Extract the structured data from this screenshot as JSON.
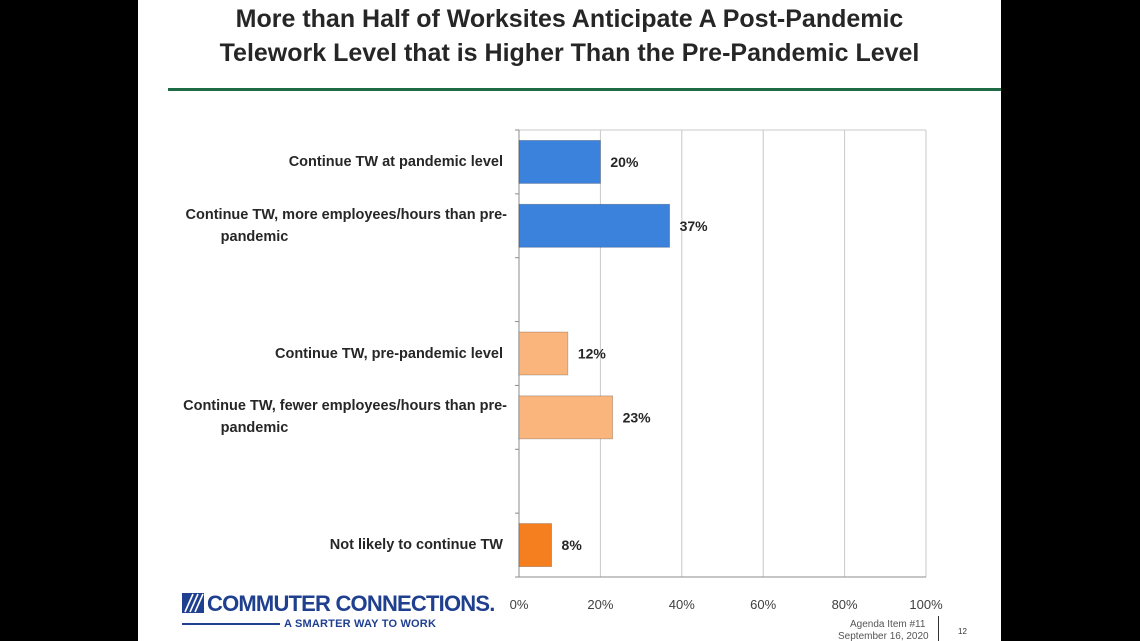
{
  "slide": {
    "title_line1": "More than Half of Worksites Anticipate A Post-Pandemic",
    "title_line2": "Telework Level that is Higher Than the Pre-Pandemic Level",
    "accent_color": "#1e6b45"
  },
  "chart_data": {
    "type": "bar",
    "orientation": "horizontal",
    "title": "",
    "xlabel": "",
    "ylabel": "",
    "xlim": [
      0,
      100
    ],
    "x_ticks": [
      "0%",
      "20%",
      "40%",
      "60%",
      "80%",
      "100%"
    ],
    "grid": true,
    "legend": "none",
    "categories": [
      {
        "label_lines": [
          "Continue TW at pandemic level"
        ],
        "value": 20,
        "value_label": "20%",
        "color": "#3b82dc",
        "group": 1
      },
      {
        "label_lines": [
          "Continue TW, more employees/hours than pre-",
          "pandemic"
        ],
        "value": 37,
        "value_label": "37%",
        "color": "#3b82dc",
        "group": 1
      },
      {
        "label_lines": [
          "Continue TW, pre-pandemic level"
        ],
        "value": 12,
        "value_label": "12%",
        "color": "#fab57c",
        "group": 2
      },
      {
        "label_lines": [
          "Continue TW, fewer employees/hours than pre-",
          "pandemic"
        ],
        "value": 23,
        "value_label": "23%",
        "color": "#fab57c",
        "group": 2
      },
      {
        "label_lines": [
          "Not likely to continue TW"
        ],
        "value": 8,
        "value_label": "8%",
        "color": "#f57f1f",
        "group": 3
      }
    ]
  },
  "logo": {
    "icon": "commuter-connections-logo-icon",
    "name": "COMMUTER CONNECTIONS.",
    "tagline": "A SMARTER WAY TO WORK"
  },
  "footer": {
    "agenda_item": "Agenda Item #11",
    "date": "September 16, 2020",
    "page_number": "12"
  }
}
